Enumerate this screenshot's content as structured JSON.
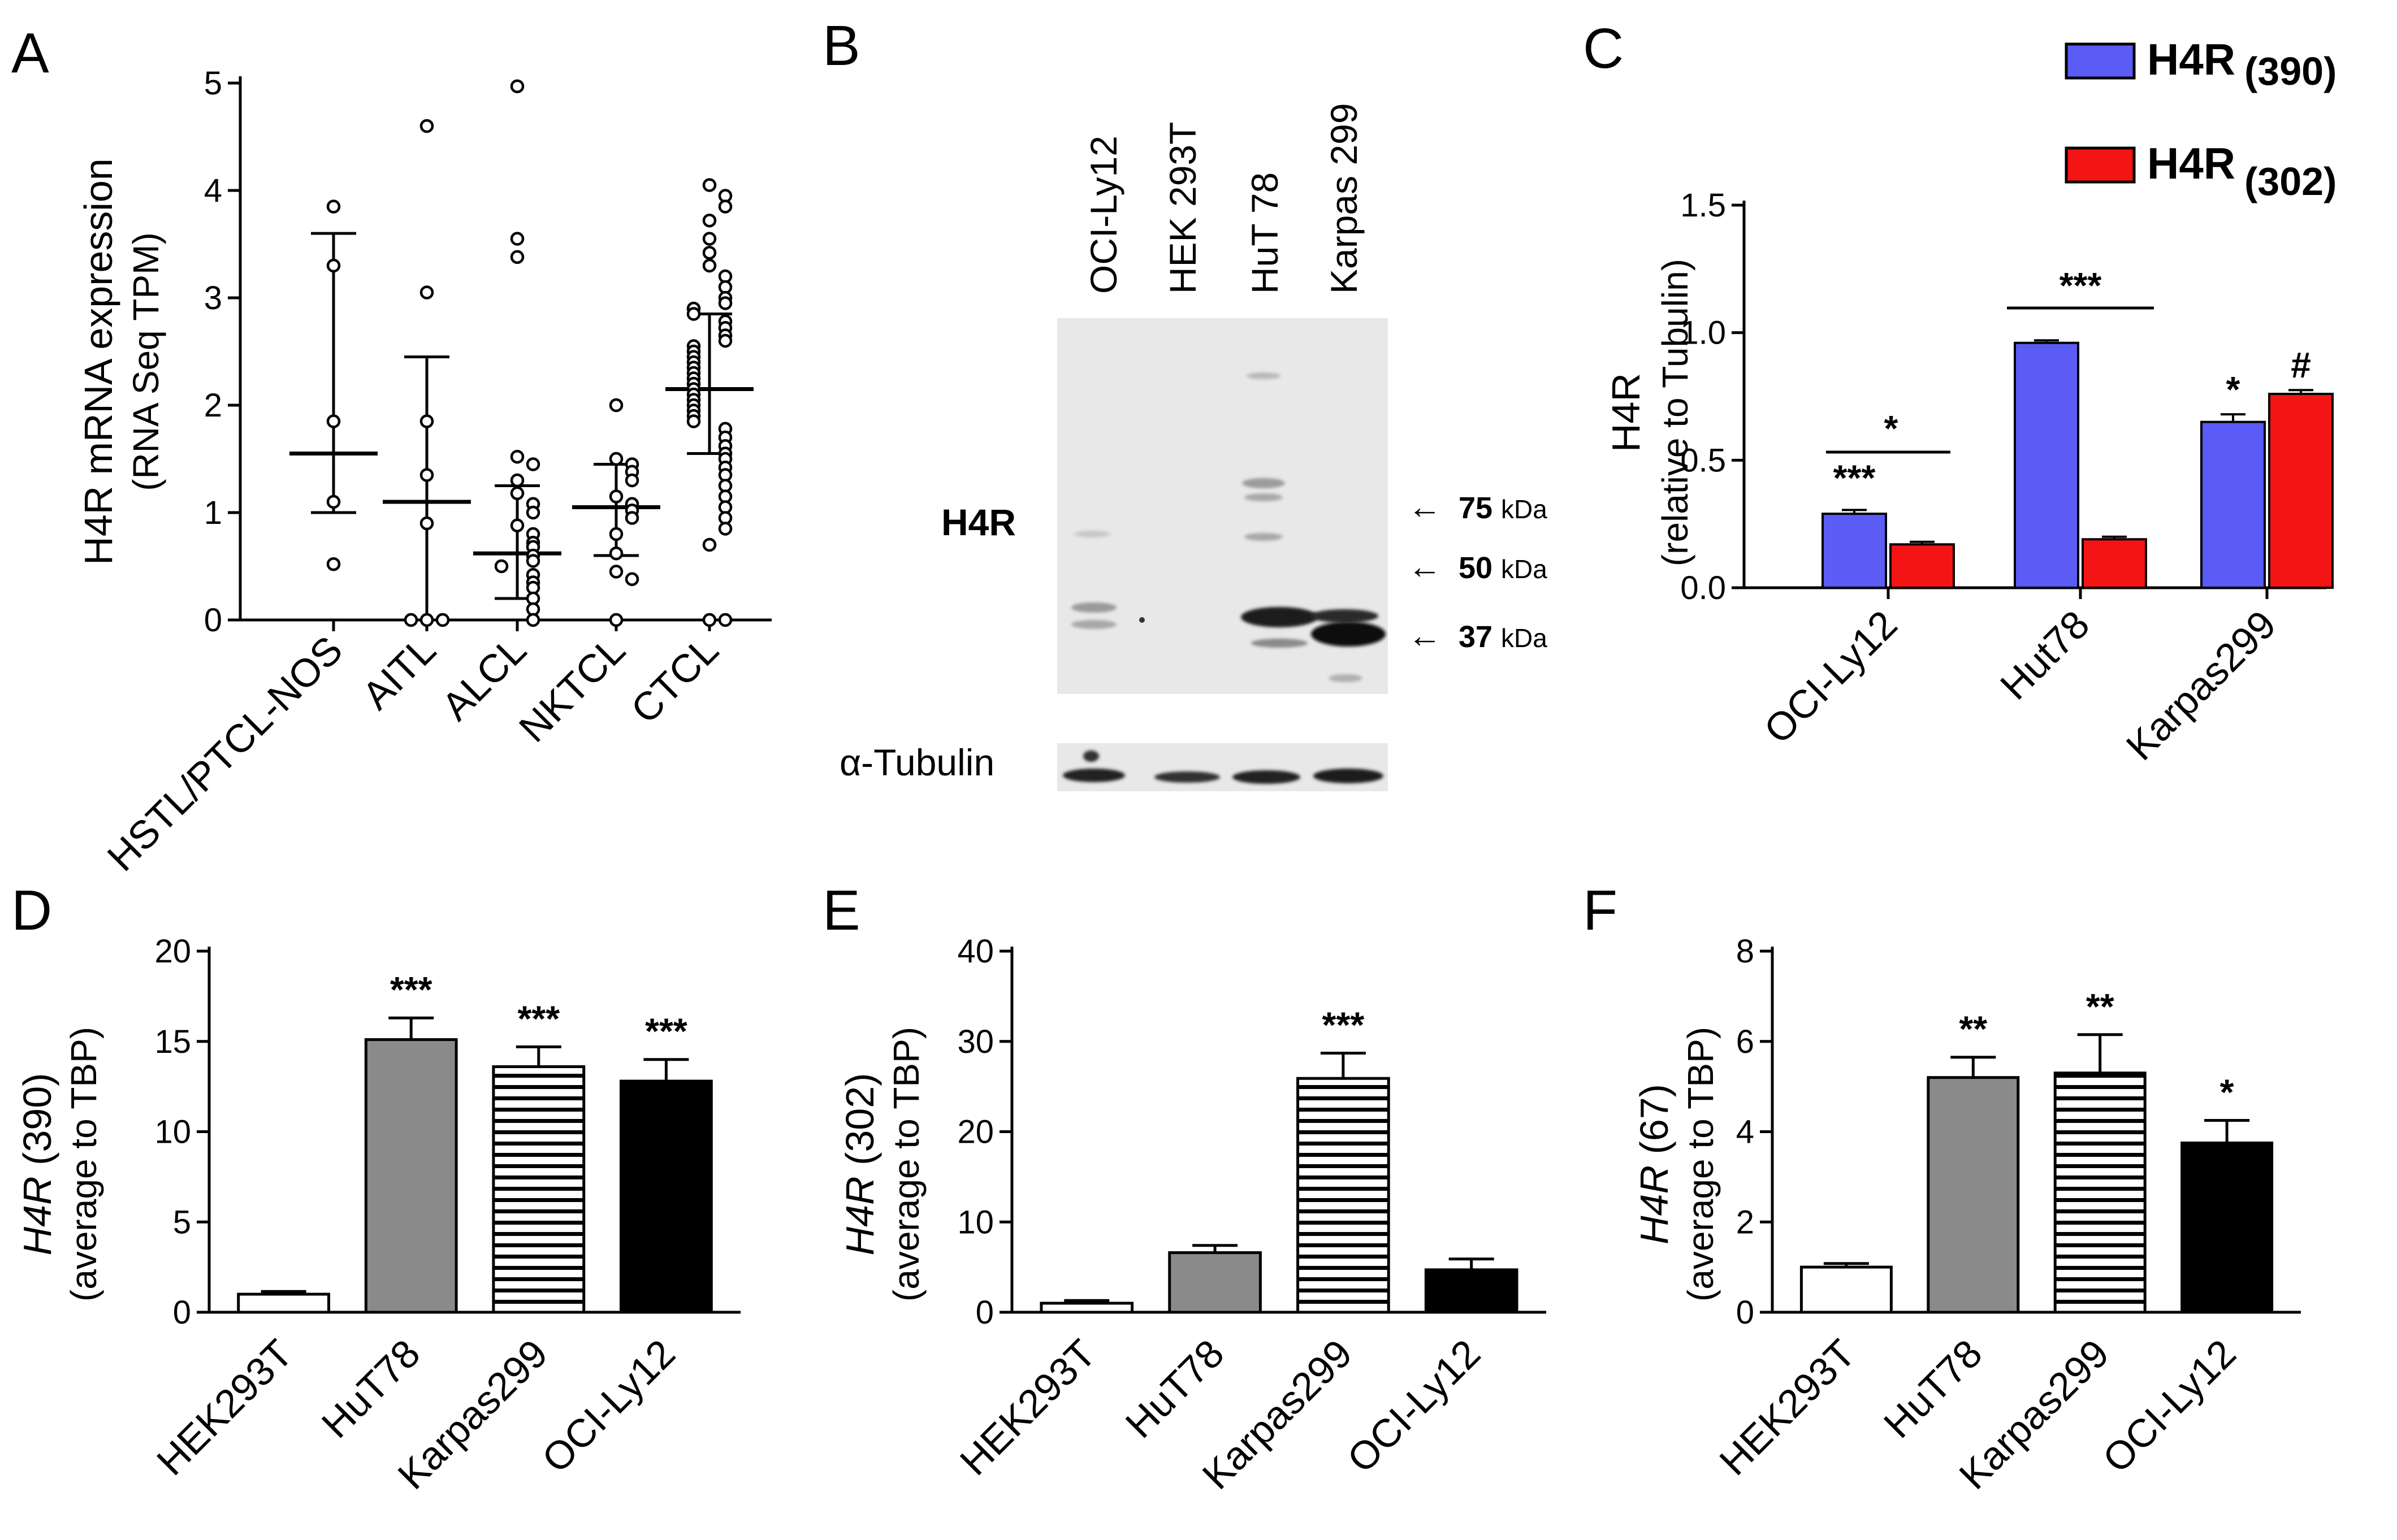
{
  "colors": {
    "blue": "#5B5BF5",
    "red": "#F41414",
    "gray": "#8A8A8A",
    "black": "#000000",
    "white": "#FFFFFF",
    "blot": "#E8E8E8"
  },
  "panels": {
    "A": {
      "letter": "A",
      "ylabel_line1": "H4R mRNA expression",
      "ylabel_line2": "(RNA Seq TPM)",
      "ticks": [
        "0",
        "1",
        "2",
        "3",
        "4",
        "5"
      ],
      "categories": [
        "HSTL/PTCL-NOS",
        "AITL",
        "ALCL",
        "NKTCL",
        "CTCL"
      ]
    },
    "B": {
      "letter": "B",
      "lanes": [
        "OCI-Ly12",
        "HEK 293T",
        "HuT 78",
        "Karpas 299"
      ],
      "band_label": "H4R",
      "tubulin_label": "α-Tubulin",
      "markers": [
        {
          "value": "75",
          "unit": "kDa"
        },
        {
          "value": "50",
          "unit": "kDa"
        },
        {
          "value": "37",
          "unit": "kDa"
        }
      ]
    },
    "C": {
      "letter": "C",
      "ylabel_line1": "H4R",
      "ylabel_line2": "(relative to Tubulin)",
      "ticks": [
        "0.0",
        "0.5",
        "1.0",
        "1.5"
      ],
      "legend": [
        {
          "label": "H4R",
          "sub": "(390)"
        },
        {
          "label": "H4R",
          "sub": "(302)"
        }
      ],
      "categories": [
        "OCI-Ly12",
        "Hut78",
        "Karpas299"
      ],
      "stars": {
        "oci_390": "***",
        "oci_pair": "*",
        "hut_pair": "***",
        "karpas_390": "*",
        "karpas_302": "#"
      }
    },
    "D": {
      "letter": "D",
      "ylabel_italic": "H4R",
      "ylabel_rest": " (390)",
      "ylabel_line2": "(average to TBP)",
      "ticks": [
        "0",
        "5",
        "10",
        "15",
        "20"
      ],
      "categories": [
        "HEK293T",
        "HuT78",
        "Karpas299",
        "OCI-Ly12"
      ],
      "stars": [
        "",
        "***",
        "***",
        "***"
      ]
    },
    "E": {
      "letter": "E",
      "ylabel_italic": "H4R",
      "ylabel_rest": " (302)",
      "ylabel_line2": "(average to TBP)",
      "ticks": [
        "0",
        "10",
        "20",
        "30",
        "40"
      ],
      "categories": [
        "HEK293T",
        "HuT78",
        "Karpas299",
        "OCI-Ly12"
      ],
      "stars": [
        "",
        "",
        "***",
        ""
      ]
    },
    "F": {
      "letter": "F",
      "ylabel_italic": "H4R",
      "ylabel_rest": " (67)",
      "ylabel_line2": "(average to TBP)",
      "ticks": [
        "0",
        "2",
        "4",
        "6",
        "8"
      ],
      "categories": [
        "HEK293T",
        "HuT78",
        "Karpas299",
        "OCI-Ly12"
      ],
      "stars": [
        "",
        "**",
        "**",
        "*"
      ]
    }
  },
  "chart_data": [
    {
      "panel": "A",
      "type": "scatter",
      "title": "",
      "xlabel": "",
      "ylabel": "H4R mRNA expression (RNA Seq TPM)",
      "ylim": [
        0,
        5
      ],
      "categories": [
        "HSTL/PTCL-NOS",
        "AITL",
        "ALCL",
        "NKTCL",
        "CTCL"
      ],
      "groups": [
        {
          "name": "HSTL/PTCL-NOS",
          "median": 1.55,
          "q1": 1.0,
          "q3": 3.6,
          "points": [
            3.85,
            3.3,
            1.85,
            1.1,
            0.52
          ]
        },
        {
          "name": "AITL",
          "median": 1.1,
          "q1": 0.0,
          "q3": 2.45,
          "points": [
            4.6,
            3.05,
            1.85,
            1.35,
            0.9,
            0.0,
            0.0,
            0.0
          ]
        },
        {
          "name": "ALCL",
          "median": 0.62,
          "q1": 0.2,
          "q3": 1.25,
          "points": [
            4.97,
            3.55,
            3.38,
            1.52,
            1.45,
            1.3,
            1.18,
            1.08,
            1.0,
            0.88,
            0.8,
            0.72,
            0.68,
            0.6,
            0.55,
            0.5,
            0.42,
            0.35,
            0.3,
            0.2,
            0.1,
            0.0
          ]
        },
        {
          "name": "NKTCL",
          "median": 1.05,
          "q1": 0.6,
          "q3": 1.45,
          "points": [
            2.0,
            1.5,
            1.45,
            1.38,
            1.3,
            1.15,
            1.08,
            1.02,
            0.95,
            0.8,
            0.62,
            0.45,
            0.38,
            0.0
          ]
        },
        {
          "name": "CTCL",
          "median": 2.15,
          "q1": 1.55,
          "q3": 2.85,
          "points": [
            4.05,
            3.95,
            3.85,
            3.72,
            3.55,
            3.42,
            3.3,
            3.2,
            3.1,
            3.0,
            2.95,
            2.9,
            2.85,
            2.78,
            2.72,
            2.65,
            2.6,
            2.55,
            2.5,
            2.45,
            2.4,
            2.35,
            2.3,
            2.25,
            2.2,
            2.15,
            2.1,
            2.05,
            2.0,
            1.95,
            1.9,
            1.85,
            1.78,
            1.7,
            1.62,
            1.55,
            1.5,
            1.42,
            1.35,
            1.25,
            1.15,
            1.05,
            0.95,
            0.85,
            0.7,
            0.0,
            0.0
          ]
        }
      ]
    },
    {
      "panel": "C",
      "type": "bar",
      "title": "",
      "xlabel": "",
      "ylabel": "H4R (relative to Tubulin)",
      "ylim": [
        0,
        1.5
      ],
      "categories": [
        "OCI-Ly12",
        "Hut78",
        "Karpas299"
      ],
      "series": [
        {
          "name": "H4R (390)",
          "color": "#5B5BF5",
          "values": [
            0.29,
            0.96,
            0.65
          ],
          "errors": [
            0.015,
            0.01,
            0.03
          ]
        },
        {
          "name": "H4R (302)",
          "color": "#F41414",
          "values": [
            0.17,
            0.19,
            0.76
          ],
          "errors": [
            0.01,
            0.01,
            0.015
          ]
        }
      ]
    },
    {
      "panel": "D",
      "type": "bar",
      "title": "",
      "xlabel": "",
      "ylabel": "H4R (390) (average to TBP)",
      "ylim": [
        0,
        20
      ],
      "categories": [
        "HEK293T",
        "HuT78",
        "Karpas299",
        "OCI-Ly12"
      ],
      "values": [
        1.0,
        15.1,
        13.6,
        12.8
      ],
      "errors": [
        0.15,
        1.2,
        1.1,
        1.2
      ]
    },
    {
      "panel": "E",
      "type": "bar",
      "title": "",
      "xlabel": "",
      "ylabel": "H4R (302) (average to TBP)",
      "ylim": [
        0,
        40
      ],
      "categories": [
        "HEK293T",
        "HuT78",
        "Karpas299",
        "OCI-Ly12"
      ],
      "values": [
        1.0,
        6.6,
        25.9,
        4.7
      ],
      "errors": [
        0.3,
        0.8,
        2.8,
        1.2
      ]
    },
    {
      "panel": "F",
      "type": "bar",
      "title": "",
      "xlabel": "",
      "ylabel": "H4R (67) (average to TBP)",
      "ylim": [
        0,
        8
      ],
      "categories": [
        "HEK293T",
        "HuT78",
        "Karpas299",
        "OCI-Ly12"
      ],
      "values": [
        1.0,
        5.2,
        5.3,
        3.75
      ],
      "errors": [
        0.08,
        0.45,
        0.85,
        0.5
      ]
    }
  ]
}
